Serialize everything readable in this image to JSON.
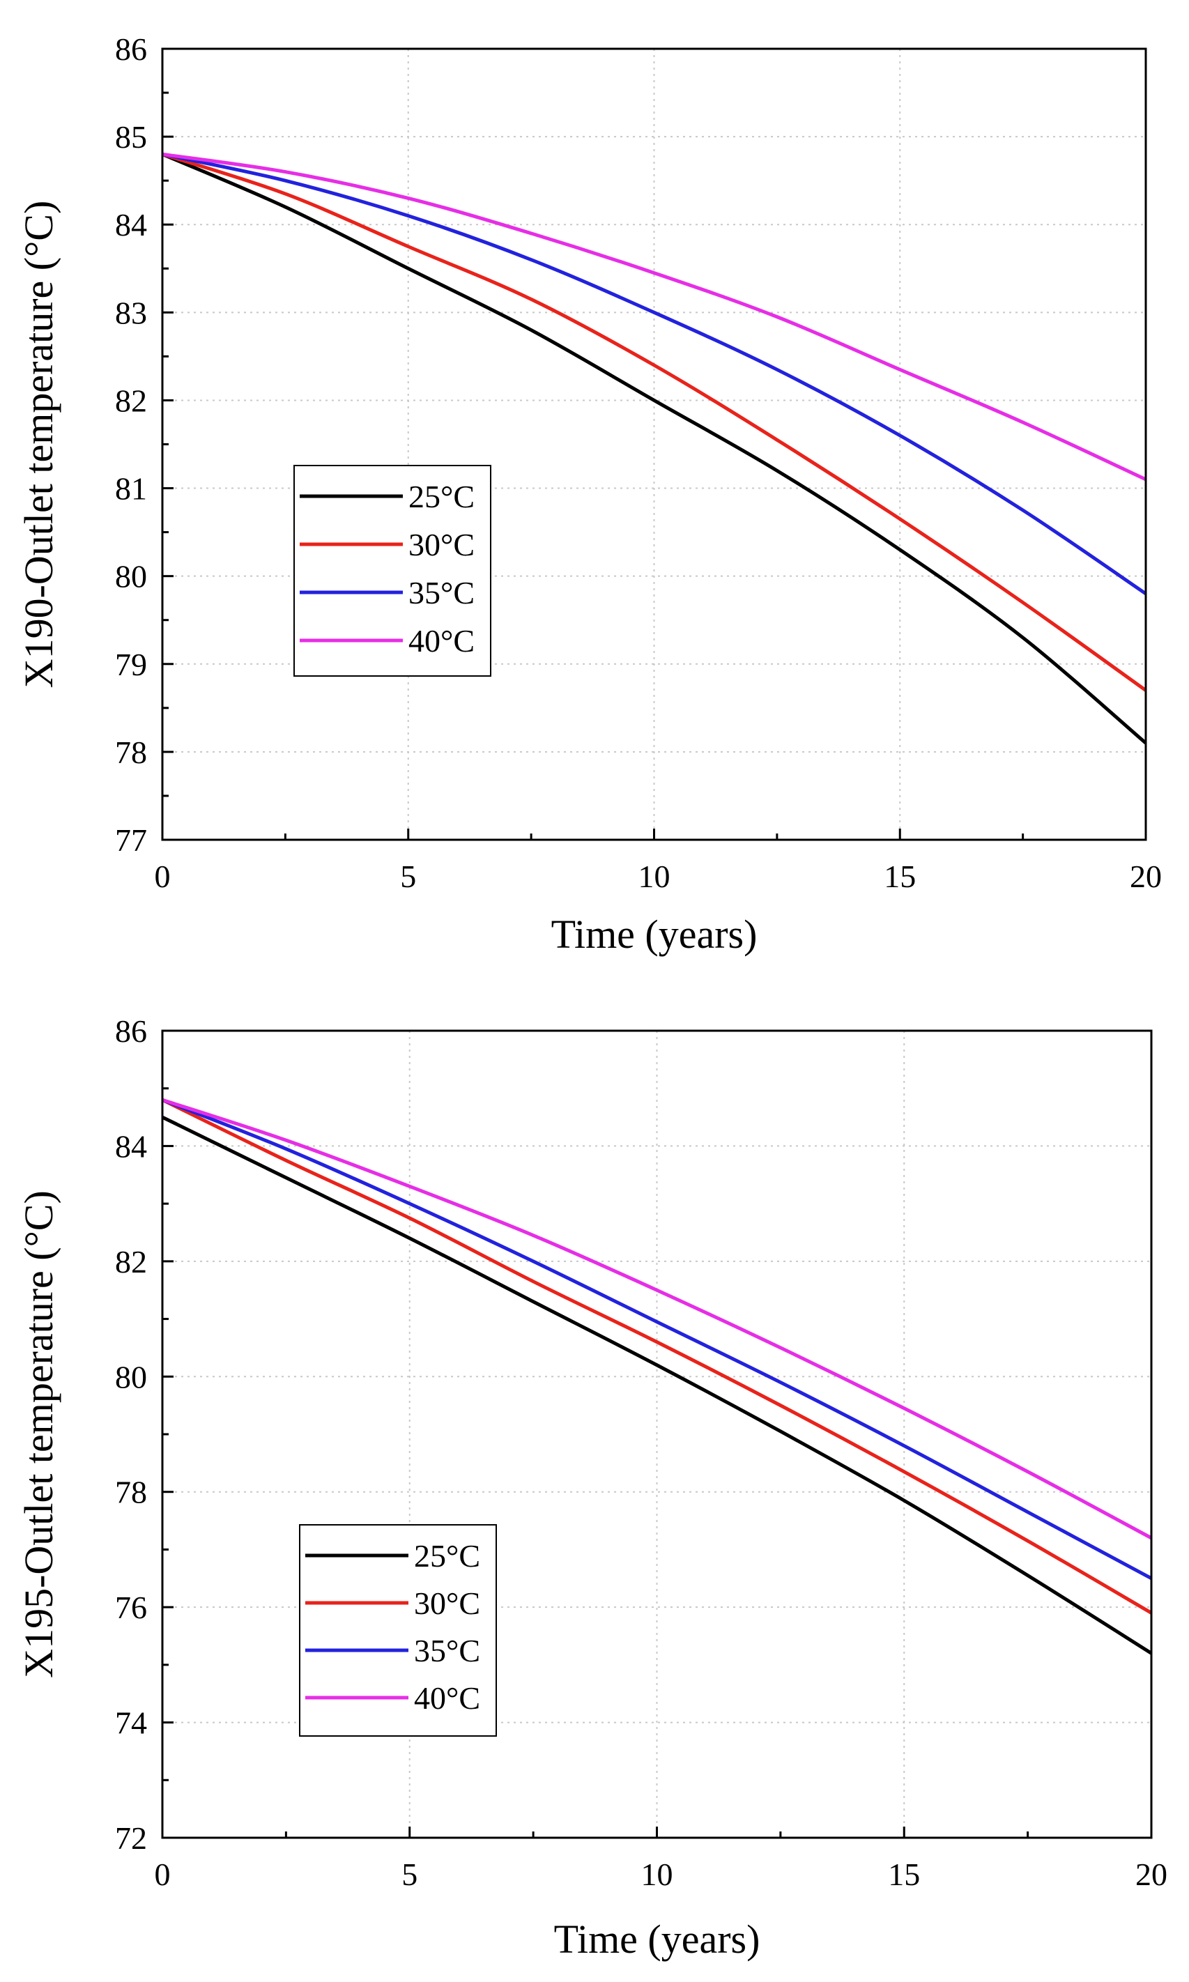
{
  "chart_data": [
    {
      "type": "line",
      "title": "",
      "xlabel": "Time (years)",
      "ylabel": "X190-Outlet temperature (°C)",
      "xlim": [
        0,
        20
      ],
      "ylim": [
        77,
        86
      ],
      "xticks": [
        0,
        5,
        10,
        15,
        20
      ],
      "yticks": [
        77,
        78,
        79,
        80,
        81,
        82,
        83,
        84,
        85,
        86
      ],
      "grid": true,
      "legend_position": "middle-left",
      "x": [
        0,
        2.5,
        5,
        7.5,
        10,
        12.5,
        15,
        17.5,
        20
      ],
      "series": [
        {
          "name": "25°C",
          "color": "#000000",
          "values": [
            84.8,
            84.2,
            83.5,
            82.8,
            82.0,
            81.2,
            80.3,
            79.3,
            78.1
          ]
        },
        {
          "name": "30°C",
          "color": "#e8231b",
          "values": [
            84.8,
            84.35,
            83.75,
            83.15,
            82.4,
            81.55,
            80.65,
            79.7,
            78.7
          ]
        },
        {
          "name": "35°C",
          "color": "#2222dd",
          "values": [
            84.8,
            84.5,
            84.1,
            83.6,
            83.0,
            82.35,
            81.6,
            80.75,
            79.8
          ]
        },
        {
          "name": "40°C",
          "color": "#e62ee6",
          "values": [
            84.8,
            84.6,
            84.3,
            83.9,
            83.45,
            82.95,
            82.35,
            81.75,
            81.1
          ]
        }
      ]
    },
    {
      "type": "line",
      "title": "",
      "xlabel": "Time (years)",
      "ylabel": "X195-Outlet temperature (°C)",
      "xlim": [
        0,
        20
      ],
      "ylim": [
        72,
        86
      ],
      "xticks": [
        0,
        5,
        10,
        15,
        20
      ],
      "yticks": [
        72,
        74,
        76,
        78,
        80,
        82,
        84,
        86
      ],
      "grid": true,
      "legend_position": "bottom-left",
      "x": [
        0,
        2.5,
        5,
        7.5,
        10,
        12.5,
        15,
        17.5,
        20
      ],
      "series": [
        {
          "name": "25°C",
          "color": "#000000",
          "values": [
            84.5,
            83.45,
            82.4,
            81.3,
            80.2,
            79.05,
            77.85,
            76.55,
            75.2
          ]
        },
        {
          "name": "30°C",
          "color": "#e8231b",
          "values": [
            84.8,
            83.75,
            82.75,
            81.65,
            80.6,
            79.5,
            78.35,
            77.15,
            75.9
          ]
        },
        {
          "name": "35°C",
          "color": "#2222dd",
          "values": [
            84.8,
            83.95,
            83.0,
            82.0,
            80.95,
            79.9,
            78.8,
            77.65,
            76.5
          ]
        },
        {
          "name": "40°C",
          "color": "#e62ee6",
          "values": [
            84.8,
            84.1,
            83.3,
            82.45,
            81.5,
            80.5,
            79.45,
            78.35,
            77.2
          ]
        }
      ]
    }
  ]
}
